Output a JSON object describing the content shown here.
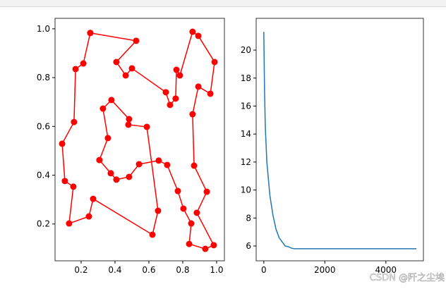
{
  "chart_data": [
    {
      "type": "line",
      "x": [
        0.254,
        0.525,
        0.408,
        0.463,
        0.5,
        0.7,
        0.725,
        0.758,
        0.763,
        0.783,
        0.858,
        0.892,
        0.988,
        0.963,
        0.892,
        0.858,
        0.867,
        0.942,
        0.883,
        0.983,
        0.933,
        0.838,
        0.85,
        0.804,
        0.771,
        0.708,
        0.658,
        0.542,
        0.483,
        0.408,
        0.375,
        0.308,
        0.358,
        0.329,
        0.379,
        0.483,
        0.479,
        0.588,
        0.654,
        0.621,
        0.271,
        0.246,
        0.129,
        0.154,
        0.104,
        0.088,
        0.158,
        0.167,
        0.213,
        0.254
      ],
      "series": [
        {
          "color": "#ff0000",
          "marker": "o",
          "values": [
            0.983,
            0.951,
            0.864,
            0.809,
            0.838,
            0.74,
            0.688,
            0.714,
            0.832,
            0.809,
            0.988,
            0.971,
            0.864,
            0.734,
            0.763,
            0.65,
            0.439,
            0.332,
            0.246,
            0.113,
            0.098,
            0.118,
            0.202,
            0.263,
            0.335,
            0.442,
            0.46,
            0.445,
            0.393,
            0.382,
            0.408,
            0.462,
            0.552,
            0.673,
            0.708,
            0.63,
            0.607,
            0.598,
            0.254,
            0.156,
            0.303,
            0.231,
            0.202,
            0.353,
            0.376,
            0.529,
            0.618,
            0.835,
            0.858,
            0.983
          ]
        }
      ],
      "xlim": [
        0.046,
        1.046
      ],
      "ylim": [
        0.049,
        1.043
      ],
      "xticks": [
        0.2,
        0.4,
        0.6,
        0.8,
        {
          "value": 1,
          "label": "1.0"
        }
      ],
      "yticks": [
        0.2,
        0.4,
        0.6,
        0.8,
        {
          "value": 1,
          "label": "1.0"
        }
      ]
    },
    {
      "type": "line",
      "x": [
        0,
        25,
        50,
        100,
        150,
        200,
        300,
        400,
        500,
        600,
        700,
        800,
        900,
        1000,
        2000,
        3000,
        4000,
        5000
      ],
      "series": [
        {
          "color": "#1f77b4",
          "values": [
            21.3,
            17,
            14.5,
            12,
            10.8,
            9.6,
            8.2,
            7.2,
            6.6,
            6.3,
            6.0,
            5.95,
            5.85,
            5.8,
            5.8,
            5.8,
            5.8,
            5.8
          ]
        }
      ],
      "xlim": [
        -250,
        5230
      ],
      "ylim": [
        4.94,
        22.27
      ],
      "xticks": [
        0,
        2000,
        4000
      ],
      "yticks": [
        6,
        8,
        10,
        12,
        14,
        16,
        18,
        20
      ]
    }
  ],
  "watermark": "CSDN @阡之尘埃"
}
